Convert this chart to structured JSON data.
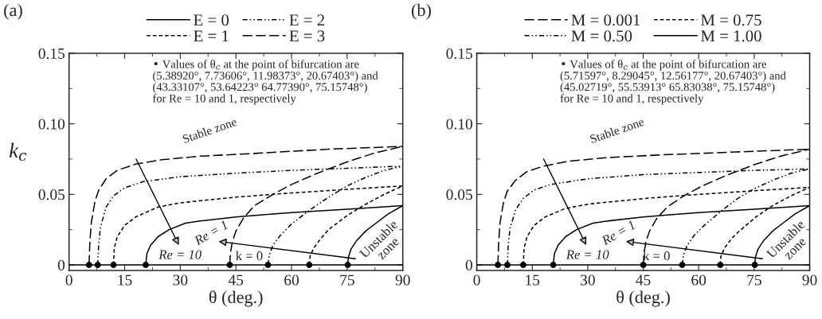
{
  "chart_data": [
    {
      "type": "line",
      "title": "(a)",
      "xlabel": "θ (deg.)",
      "ylabel": "k$_{c}$",
      "xlim": [
        0,
        90
      ],
      "xticks": [
        0,
        15,
        30,
        45,
        60,
        75,
        90
      ],
      "ylim": [
        -0.004,
        0.15
      ],
      "yticks": [
        0,
        0.05,
        {
          "value": 0.1,
          "label": "0.10"
        },
        0.15
      ],
      "legend": "top",
      "grid": false,
      "ref_lines": [
        {
          "axis": "y",
          "value": 0,
          "color": "#000000",
          "line_style": "solid"
        }
      ],
      "series": [
        {
          "name": "E = 0",
          "color": "#000000",
          "line_style": "solid",
          "x": [
            20.674,
            21,
            22,
            24,
            27,
            31.4,
            35,
            45,
            52.9,
            60,
            75,
            90
          ],
          "values": [
            0,
            0.008,
            0.014,
            0.02,
            0.025,
            0.0296,
            0.031,
            0.034,
            0.0356,
            0.037,
            0.0395,
            0.042
          ]
        },
        {
          "name": "E = 1",
          "color": "#000000",
          "line_style": "dotted",
          "x": [
            11.984,
            12.2,
            13,
            15,
            18,
            24,
            30,
            45,
            60,
            75,
            90
          ],
          "values": [
            0,
            0.012,
            0.02,
            0.028,
            0.034,
            0.041,
            0.044,
            0.048,
            0.051,
            0.0535,
            0.056
          ]
        },
        {
          "name": "E = 2",
          "color": "#000000",
          "line_style": "dashdot",
          "x": [
            7.736,
            8,
            8.5,
            10,
            12,
            15,
            20,
            30,
            45,
            60,
            75,
            90
          ],
          "values": [
            0,
            0.015,
            0.027,
            0.041,
            0.049,
            0.0546,
            0.059,
            0.0625,
            0.065,
            0.067,
            0.0685,
            0.07
          ]
        },
        {
          "name": "E = 3",
          "color": "#000000",
          "line_style": "dashed",
          "x": [
            5.389,
            5.6,
            6,
            7,
            8,
            10,
            13,
            18,
            25,
            35,
            50,
            70,
            90
          ],
          "values": [
            0,
            0.015,
            0.03,
            0.045,
            0.053,
            0.061,
            0.067,
            0.0715,
            0.0745,
            0.077,
            0.079,
            0.082,
            0.084
          ]
        },
        {
          "color": "#000000",
          "line_style": "solid",
          "x": [
            75.157,
            75.3,
            76,
            77.5,
            80,
            83,
            86,
            90
          ],
          "values": [
            0,
            0.005,
            0.011,
            0.017,
            0.024,
            0.03,
            0.036,
            0.042
          ]
        },
        {
          "color": "#000000",
          "line_style": "dotted",
          "x": [
            64.774,
            65,
            66,
            68,
            70,
            75,
            80,
            85,
            90
          ],
          "values": [
            0,
            0.006,
            0.012,
            0.019,
            0.025,
            0.035,
            0.043,
            0.05,
            0.056
          ]
        },
        {
          "color": "#000000",
          "line_style": "dashdot",
          "x": [
            53.642,
            54,
            55,
            57,
            60,
            65,
            70,
            75,
            80,
            85,
            90
          ],
          "values": [
            0,
            0.007,
            0.014,
            0.021,
            0.029,
            0.039,
            0.048,
            0.056,
            0.062,
            0.067,
            0.07
          ]
        },
        {
          "color": "#000000",
          "line_style": "dashed",
          "x": [
            43.331,
            43.5,
            44,
            45,
            47,
            50,
            55,
            60,
            67,
            75,
            82,
            90
          ],
          "values": [
            0,
            0.008,
            0.016,
            0.024,
            0.033,
            0.042,
            0.05,
            0.057,
            0.065,
            0.073,
            0.079,
            0.084
          ]
        },
        {
          "type": "scatter",
          "marker": "circle",
          "color": "#000000",
          "x": [
            5.389,
            7.736,
            11.984,
            20.674,
            43.331,
            53.642,
            64.774,
            75.157
          ],
          "values": [
            0,
            0,
            0,
            0,
            0,
            0,
            0,
            0
          ]
        }
      ],
      "annotations": [
        "• Values of θ$_{c}$ at the point of bifurcation are\n(5.38920°, 7.73606°, 11.98373°, 20.67403°) and\n(43.33107°, 53.64223° 64.77390°, 75.15748°)\nfor Re = 10 and 1, respectively",
        "Stable zone",
        "Unstable\nzone",
        "Re = 10",
        "Re = 1",
        "k = 0"
      ]
    },
    {
      "type": "line",
      "title": "(b)",
      "xlabel": "θ (deg.)",
      "xlim": [
        0,
        90
      ],
      "xticks": [
        0,
        15,
        30,
        45,
        60,
        75,
        90
      ],
      "ylim": [
        -0.004,
        0.15
      ],
      "yticks": [
        0,
        0.05,
        {
          "value": 0.1,
          "label": "0.10"
        },
        0.15
      ],
      "legend": "top",
      "grid": false,
      "ref_lines": [
        {
          "axis": "y",
          "value": 0,
          "color": "#000000",
          "line_style": "solid"
        }
      ],
      "series": [
        {
          "name": "M = 0.001",
          "color": "#000000",
          "line_style": "dashed",
          "x": [
            5.716,
            5.9,
            6.3,
            7.2,
            8.2,
            10.5,
            13.5,
            18,
            25,
            35,
            50,
            70,
            90
          ],
          "values": [
            0,
            0.015,
            0.03,
            0.044,
            0.052,
            0.06,
            0.066,
            0.07,
            0.0735,
            0.076,
            0.078,
            0.08,
            0.082
          ]
        },
        {
          "name": "M = 0.50",
          "color": "#000000",
          "line_style": "dashdot",
          "x": [
            8.29,
            8.5,
            9,
            10.5,
            12.5,
            15.5,
            20,
            30,
            45,
            60,
            75,
            90
          ],
          "values": [
            0,
            0.014,
            0.026,
            0.039,
            0.047,
            0.053,
            0.057,
            0.061,
            0.064,
            0.0655,
            0.067,
            0.068
          ]
        },
        {
          "name": "M = 0.75",
          "color": "#000000",
          "line_style": "dotted",
          "x": [
            12.562,
            12.8,
            13.6,
            15.5,
            18.5,
            24,
            30,
            45,
            60,
            75,
            90
          ],
          "values": [
            0,
            0.012,
            0.02,
            0.028,
            0.034,
            0.04,
            0.043,
            0.047,
            0.05,
            0.0525,
            0.055
          ]
        },
        {
          "name": "M = 1.00",
          "color": "#000000",
          "line_style": "solid",
          "x": [
            20.674,
            21,
            22,
            24,
            27,
            31.4,
            35,
            45,
            52.9,
            60,
            75,
            90
          ],
          "values": [
            0,
            0.008,
            0.014,
            0.02,
            0.025,
            0.0296,
            0.031,
            0.034,
            0.0356,
            0.037,
            0.0395,
            0.042
          ]
        },
        {
          "color": "#000000",
          "line_style": "dashed",
          "x": [
            45.027,
            45.2,
            45.7,
            46.7,
            48.7,
            51.5,
            56,
            61,
            68,
            75,
            82,
            90
          ],
          "values": [
            0,
            0.008,
            0.016,
            0.024,
            0.033,
            0.041,
            0.049,
            0.056,
            0.064,
            0.071,
            0.077,
            0.082
          ]
        },
        {
          "color": "#000000",
          "line_style": "dashdot",
          "x": [
            55.539,
            55.9,
            56.9,
            58.8,
            61.5,
            66,
            70.5,
            75,
            80,
            85,
            90
          ],
          "values": [
            0,
            0.007,
            0.014,
            0.021,
            0.028,
            0.038,
            0.047,
            0.054,
            0.06,
            0.065,
            0.068
          ]
        },
        {
          "color": "#000000",
          "line_style": "dotted",
          "x": [
            65.83,
            66,
            67,
            69,
            71,
            75.5,
            80,
            85,
            90
          ],
          "values": [
            0,
            0.006,
            0.012,
            0.019,
            0.024,
            0.034,
            0.042,
            0.049,
            0.055
          ]
        },
        {
          "color": "#000000",
          "line_style": "solid",
          "x": [
            75.157,
            75.3,
            76,
            77.5,
            80,
            83,
            86,
            90
          ],
          "values": [
            0,
            0.005,
            0.011,
            0.017,
            0.024,
            0.03,
            0.036,
            0.042
          ]
        },
        {
          "type": "scatter",
          "marker": "circle",
          "color": "#000000",
          "x": [
            5.716,
            8.29,
            12.562,
            20.674,
            45.027,
            55.539,
            65.83,
            75.157
          ],
          "values": [
            0,
            0,
            0,
            0,
            0,
            0,
            0,
            0
          ]
        }
      ],
      "annotations": [
        "• Values of θ$_{c}$ at the point of bifurcation are\n(5.71597°, 8.29045°, 12.56177°, 20.67403°) and\n(45.02719°, 55.53913° 65.83038°, 75.15748°)\nfor Re = 10 and 1, respectively",
        "Stable zone",
        "Unstable\nzone",
        "Re = 10",
        "Re = 1",
        "k = 0"
      ]
    }
  ]
}
